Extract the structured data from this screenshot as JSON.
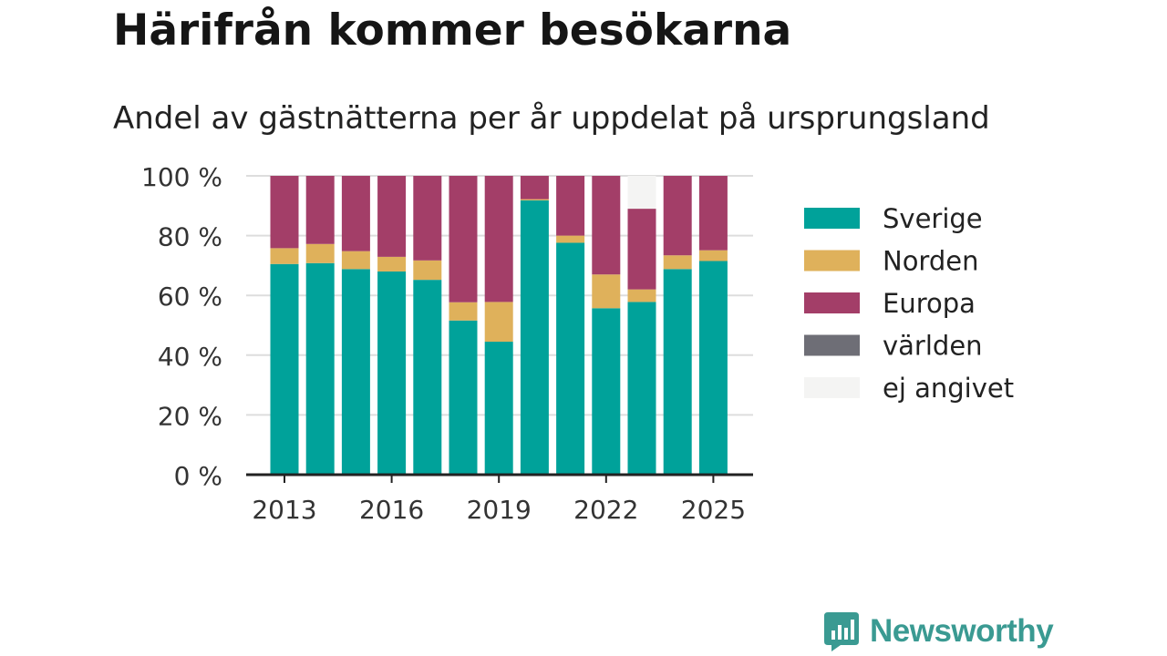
{
  "title": "Härifrån kommer besökarna",
  "subtitle": "Andel av gästnätterna per år uppdelat på ursprungsland",
  "brand": {
    "name": "Newsworthy"
  },
  "colors": {
    "Sverige": "#00a29a",
    "Norden": "#dfb15b",
    "Europa": "#a33e68",
    "världen": "#6e6e76",
    "ej angivet": "#f4f4f3",
    "grid": "#dddddd",
    "axis": "#222222",
    "brand": "#3a9a92"
  },
  "chart_data": {
    "type": "bar",
    "stacked": true,
    "categories": [
      "2013",
      "2014",
      "2015",
      "2016",
      "2017",
      "2018",
      "2019",
      "2020",
      "2021",
      "2022",
      "2023",
      "2024",
      "2025"
    ],
    "x_tick_labels": [
      "2013",
      "2016",
      "2019",
      "2022",
      "2025"
    ],
    "y_ticks": [
      0,
      20,
      40,
      60,
      80,
      100
    ],
    "y_tick_suffix": " %",
    "ylim": [
      0,
      100
    ],
    "grid": true,
    "legend_position": "right",
    "series": [
      {
        "name": "Sverige",
        "values": [
          70.5,
          70.8,
          68.8,
          68.0,
          65.2,
          51.6,
          44.5,
          91.8,
          77.6,
          55.7,
          57.8,
          68.8,
          71.5
        ]
      },
      {
        "name": "Norden",
        "values": [
          5.3,
          6.4,
          6.0,
          4.9,
          6.5,
          6.1,
          13.3,
          0.4,
          2.4,
          11.3,
          4.2,
          4.6,
          3.6
        ]
      },
      {
        "name": "Europa",
        "values": [
          24.2,
          22.8,
          25.2,
          27.1,
          28.3,
          42.3,
          42.2,
          7.8,
          20.0,
          33.0,
          27.0,
          26.6,
          24.9
        ]
      },
      {
        "name": "världen",
        "values": [
          0,
          0,
          0,
          0,
          0,
          0,
          0,
          0,
          0,
          0,
          0,
          0,
          0
        ]
      },
      {
        "name": "ej angivet",
        "values": [
          0,
          0,
          0,
          0,
          0,
          0,
          0,
          0,
          0,
          0,
          11.0,
          0,
          0
        ]
      }
    ]
  }
}
